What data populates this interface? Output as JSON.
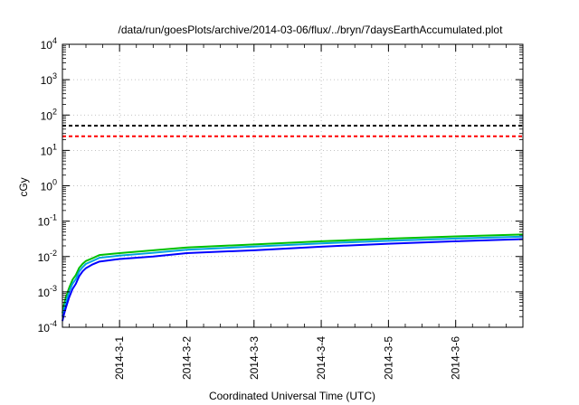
{
  "chart_data": {
    "type": "line",
    "title": "/data/run/goesPlots/archive/2014-03-06/flux/../bryn/7daysEarthAccumulated.plot",
    "xlabel": "Coordinated Universal Time (UTC)",
    "ylabel": "cGy",
    "y_scale": "log",
    "ylim_exp": [
      -4,
      4
    ],
    "y_tick_base": "10",
    "y_tick_exponents": [
      "-4",
      "-3",
      "-2",
      "-1",
      "0",
      "1",
      "2",
      "3",
      "4"
    ],
    "xlim_days": [
      0.15,
      7.0
    ],
    "x_ticks": [
      {
        "day": 1,
        "label": "2014-3-1"
      },
      {
        "day": 2,
        "label": "2014-3-2"
      },
      {
        "day": 3,
        "label": "2014-3-3"
      },
      {
        "day": 4,
        "label": "2014-3-4"
      },
      {
        "day": 5,
        "label": "2014-3-5"
      },
      {
        "day": 6,
        "label": "2014-3-6"
      }
    ],
    "grid": true,
    "thresholds": [
      {
        "value": 50,
        "color": "#000000",
        "style": "dashed"
      },
      {
        "value": 25,
        "color": "#ff0000",
        "style": "dashed"
      }
    ],
    "series": [
      {
        "color": "#00c000",
        "x": [
          0.15,
          0.17,
          0.2,
          0.25,
          0.3,
          0.35,
          0.4,
          0.45,
          0.5,
          0.6,
          0.7,
          1.0,
          1.5,
          2.0,
          3.0,
          4.0,
          5.0,
          6.0,
          7.0
        ],
        "y": [
          0.00025,
          0.0004,
          0.0007,
          0.0013,
          0.0022,
          0.003,
          0.0048,
          0.0062,
          0.0075,
          0.009,
          0.011,
          0.0125,
          0.015,
          0.018,
          0.022,
          0.027,
          0.032,
          0.037,
          0.042
        ]
      },
      {
        "color": "#00a0e0",
        "x": [
          0.15,
          0.17,
          0.2,
          0.25,
          0.3,
          0.35,
          0.4,
          0.45,
          0.5,
          0.6,
          0.7,
          1.0,
          1.5,
          2.0,
          3.0,
          4.0,
          5.0,
          6.0,
          7.0
        ],
        "y": [
          0.0002,
          0.0003,
          0.0005,
          0.001,
          0.0017,
          0.0023,
          0.0038,
          0.005,
          0.0062,
          0.0075,
          0.0092,
          0.0106,
          0.0127,
          0.0155,
          0.0191,
          0.0235,
          0.0279,
          0.0321,
          0.0365
        ]
      },
      {
        "color": "#0000ff",
        "x": [
          0.15,
          0.17,
          0.2,
          0.25,
          0.3,
          0.35,
          0.4,
          0.45,
          0.5,
          0.6,
          0.7,
          1.0,
          1.5,
          2.0,
          3.0,
          4.0,
          5.0,
          6.0,
          7.0
        ],
        "y": [
          0.00015,
          0.00022,
          0.00035,
          0.0007,
          0.0012,
          0.0017,
          0.0028,
          0.0038,
          0.0047,
          0.006,
          0.0072,
          0.0085,
          0.01,
          0.0125,
          0.015,
          0.019,
          0.023,
          0.027,
          0.031
        ]
      }
    ]
  }
}
